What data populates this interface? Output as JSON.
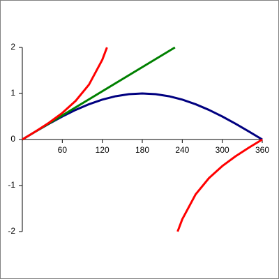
{
  "chart_data": {
    "type": "line",
    "xlim": [
      0,
      360
    ],
    "ylim": [
      -2,
      2
    ],
    "xticks": [
      60,
      120,
      180,
      240,
      300,
      360
    ],
    "yticks": [
      -2,
      -1,
      0,
      1,
      2
    ],
    "series": [
      {
        "color": "#000080",
        "x": [
          0,
          20,
          40,
          60,
          80,
          100,
          120,
          140,
          160,
          180,
          200,
          220,
          240,
          260,
          280,
          300,
          320,
          340,
          360
        ],
        "values": [
          0,
          0.174,
          0.342,
          0.5,
          0.643,
          0.766,
          0.866,
          0.94,
          0.985,
          1,
          0.985,
          0.94,
          0.866,
          0.766,
          0.643,
          0.5,
          0.342,
          0.174,
          0
        ]
      },
      {
        "color": "#008000",
        "x": [
          0,
          229
        ],
        "values": [
          0,
          2
        ]
      },
      {
        "color": "#ff0000",
        "x": [
          0,
          20,
          40,
          60,
          80,
          100,
          120,
          127,
          180,
          233,
          240,
          260,
          280,
          300,
          320,
          340,
          360
        ],
        "values": [
          0,
          0.176,
          0.364,
          0.577,
          0.839,
          1.192,
          1.732,
          2,
          null,
          -2,
          -1.732,
          -1.192,
          -0.839,
          -0.577,
          -0.364,
          -0.176,
          0
        ]
      }
    ]
  }
}
